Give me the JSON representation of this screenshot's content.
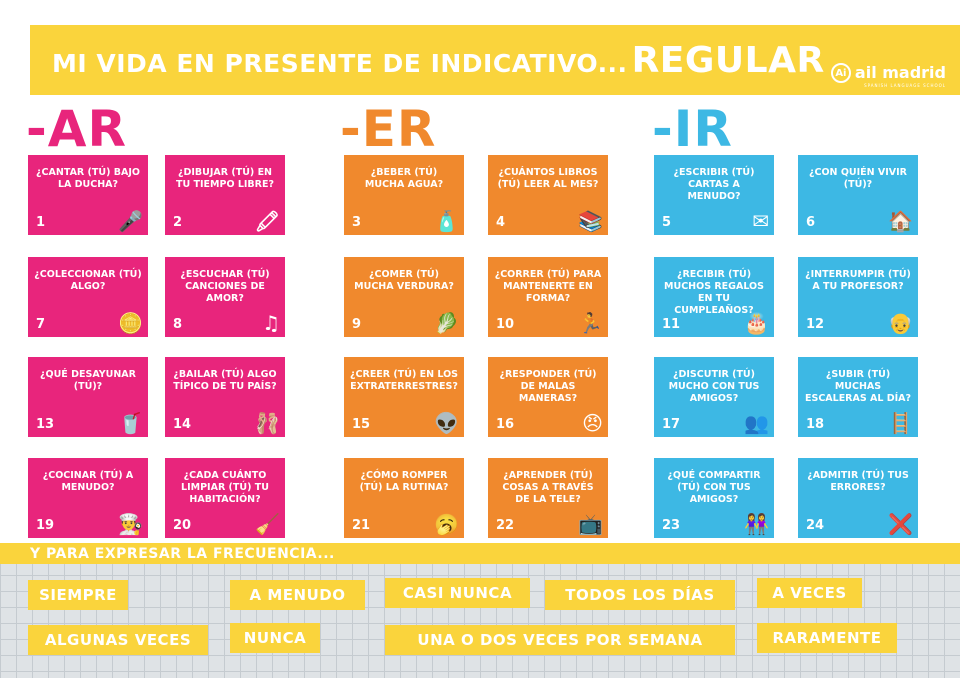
{
  "title": {
    "main": "MI VIDA EN PRESENTE DE INDICATIVO...",
    "strong": "REGULAR"
  },
  "logo": {
    "badge": "Ai",
    "name": "ail madrid",
    "sub": "SPANISH LANGUAGE SCHOOL"
  },
  "colors": {
    "yellow": "#fad43c",
    "ar": "#e8257c",
    "er": "#f0892d",
    "ir": "#3db8e4"
  },
  "groups": {
    "ar": "-AR",
    "er": "-ER",
    "ir": "-IR"
  },
  "cards": [
    {
      "num": "1",
      "text": "¿CANTAR (TÚ) BAJO LA DUCHA?",
      "icon": "microphone-icon",
      "glyph": "🎤"
    },
    {
      "num": "2",
      "text": "¿DIBUJAR (TÚ) EN TU TIEMPO LIBRE?",
      "icon": "crayons-icon",
      "glyph": "🖍"
    },
    {
      "num": "3",
      "text": "¿BEBER (TÚ) MUCHA AGUA?",
      "icon": "water-bottle-icon",
      "glyph": "🧴"
    },
    {
      "num": "4",
      "text": "¿CUÁNTOS LIBROS (TÚ) LEER AL MES?",
      "icon": "books-icon",
      "glyph": "📚"
    },
    {
      "num": "5",
      "text": "¿ESCRIBIR (TÚ) CARTAS A MENUDO?",
      "icon": "letter-icon",
      "glyph": "✉"
    },
    {
      "num": "6",
      "text": "¿CON QUIÉN VIVIR (TÚ)?",
      "icon": "house-icon",
      "glyph": "🏠"
    },
    {
      "num": "7",
      "text": "¿COLECCIONAR (TÚ) ALGO?",
      "icon": "stamps-coins-icon",
      "glyph": "🪙"
    },
    {
      "num": "8",
      "text": "¿ESCUCHAR (TÚ) CANCIONES DE AMOR?",
      "icon": "music-notes-icon",
      "glyph": "♫"
    },
    {
      "num": "9",
      "text": "¿COMER (TÚ) MUCHA VERDURA?",
      "icon": "vegetable-crate-icon",
      "glyph": "🥬"
    },
    {
      "num": "10",
      "text": "¿CORRER (TÚ) PARA MANTENERTE EN FORMA?",
      "icon": "runner-icon",
      "glyph": "🏃"
    },
    {
      "num": "11",
      "text": "¿RECIBIR (TÚ) MUCHOS REGALOS EN TU CUMPLEAÑOS?",
      "icon": "birthday-cake-icon",
      "glyph": "🎂"
    },
    {
      "num": "12",
      "text": "¿INTERRUMPIR (TÚ) A TU PROFESOR?",
      "icon": "teacher-icon",
      "glyph": "👴"
    },
    {
      "num": "13",
      "text": "¿QUÉ DESAYUNAR (TÚ)?",
      "icon": "breakfast-icon",
      "glyph": "🥤"
    },
    {
      "num": "14",
      "text": "¿BAILAR (TÚ) ALGO TÍPICO DE TU PAÍS?",
      "icon": "ballet-shoes-icon",
      "glyph": "🩰"
    },
    {
      "num": "15",
      "text": "¿CREER (TÚ) EN LOS EXTRATERRESTRES?",
      "icon": "alien-icon",
      "glyph": "👽"
    },
    {
      "num": "16",
      "text": "¿RESPONDER (TÚ) DE MALAS MANERAS?",
      "icon": "angry-face-icon",
      "glyph": "😠"
    },
    {
      "num": "17",
      "text": "¿DISCUTIR (TÚ) MUCHO CON TUS AMIGOS?",
      "icon": "arguing-friends-icon",
      "glyph": "👥"
    },
    {
      "num": "18",
      "text": "¿SUBIR (TÚ) MUCHAS ESCALERAS AL DÍA?",
      "icon": "stairs-icon",
      "glyph": "🪜"
    },
    {
      "num": "19",
      "text": "¿COCINAR (TÚ) A MENUDO?",
      "icon": "chef-hat-icon",
      "glyph": "👨‍🍳"
    },
    {
      "num": "20",
      "text": "¿CADA CUÁNTO LIMPIAR (TÚ) TU HABITACIÓN?",
      "icon": "cleaning-bucket-icon",
      "glyph": "🧹"
    },
    {
      "num": "21",
      "text": "¿CÓMO ROMPER (TÚ) LA RUTINA?",
      "icon": "yawning-face-icon",
      "glyph": "🥱"
    },
    {
      "num": "22",
      "text": "¿APRENDER (TÚ) COSAS A TRAVÉS DE LA TELE?",
      "icon": "television-icon",
      "glyph": "📺"
    },
    {
      "num": "23",
      "text": "¿QUÉ COMPARTIR (TÚ) CON TUS AMIGOS?",
      "icon": "friends-icon",
      "glyph": "👭"
    },
    {
      "num": "24",
      "text": "¿ADMITIR (TÚ) TUS ERRORES?",
      "icon": "error-x-icon",
      "glyph": "❌"
    }
  ],
  "frequency": {
    "title": "Y PARA EXPRESAR LA FRECUENCIA...",
    "items": [
      "SIEMPRE",
      "A MENUDO",
      "CASI NUNCA",
      "TODOS LOS DÍAS",
      "A VECES",
      "ALGUNAS VECES",
      "NUNCA",
      "UNA O DOS VECES POR SEMANA",
      "RARAMENTE"
    ]
  }
}
